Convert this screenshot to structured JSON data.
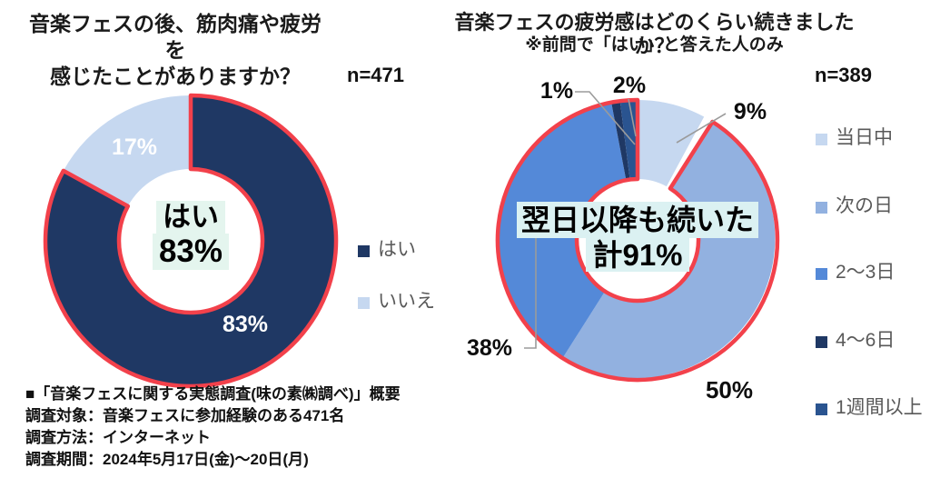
{
  "page": {
    "background": "#FFFFFF"
  },
  "colors": {
    "red_outline": "#F2414B",
    "leader_line": "#9B9B9B",
    "center_highlight_left": "#E4F5EE",
    "center_highlight_right": "#DBF1F2",
    "legend_text": "#595959",
    "label_on_slice": "#FFFFFF"
  },
  "chart_data": [
    {
      "type": "pie",
      "donut": true,
      "title": "音楽フェスの後、筋肉痛や疲労を感じたことがありますか？",
      "n": "n=471",
      "categories": [
        "はい",
        "いいえ"
      ],
      "values": [
        83,
        17
      ],
      "colors": [
        "#1F3864",
        "#C6D8F0"
      ],
      "center_label": "はい 83%",
      "outlined_slices": [
        "はい"
      ],
      "legend_position": "right"
    },
    {
      "type": "pie",
      "donut": true,
      "title": "音楽フェスの疲労感はどのくらい続きましたか？",
      "subtitle": "※前問で「はい」と答えた人のみ",
      "n": "n=389",
      "categories": [
        "当日中",
        "次の日",
        "2～3日",
        "4～6日",
        "1週間以上"
      ],
      "values": [
        9,
        50,
        38,
        1,
        2
      ],
      "colors": [
        "#C6D8F0",
        "#92B1E0",
        "#5489D8",
        "#1F3864",
        "#2A5490"
      ],
      "center_label": "翌日以降も続いた 計91%",
      "outlined_slices": [
        "次の日",
        "2～3日",
        "4～6日",
        "1週間以上"
      ],
      "legend_position": "right"
    }
  ],
  "charts": [
    {
      "title_line1": "音楽フェスの後、筋肉痛や疲労を",
      "title_line2": "感じたことがありますか？",
      "n_label": "n=471",
      "center_line1": "はい",
      "center_line2": "83%",
      "slice_labels": [
        "83%",
        "17%"
      ],
      "legend": [
        {
          "label": "はい"
        },
        {
          "label": "いいえ"
        }
      ]
    },
    {
      "title_line1": "音楽フェスの疲労感はどのくらい続きましたか？",
      "subtitle": "※前問で「はい」と答えた人のみ",
      "n_label": "n=389",
      "center_line1": "翌日以降も続いた",
      "center_line2": "計91%",
      "slice_labels": [
        "9%",
        "50%",
        "38%",
        "1%",
        "2%"
      ],
      "legend": [
        {
          "label": "当日中"
        },
        {
          "label": "次の日"
        },
        {
          "label": "2～3日"
        },
        {
          "label": "4～6日"
        },
        {
          "label": "1週間以上"
        }
      ]
    }
  ],
  "footer": {
    "line1": "■「音楽フェスに関する実態調査(味の素㈱調べ)」概要",
    "line2": "調査対象：音楽フェスに参加経験のある471名",
    "line3": "調査方法：インターネット",
    "line4": "調査期間：2024年5月17日(金)～20日(月)"
  }
}
